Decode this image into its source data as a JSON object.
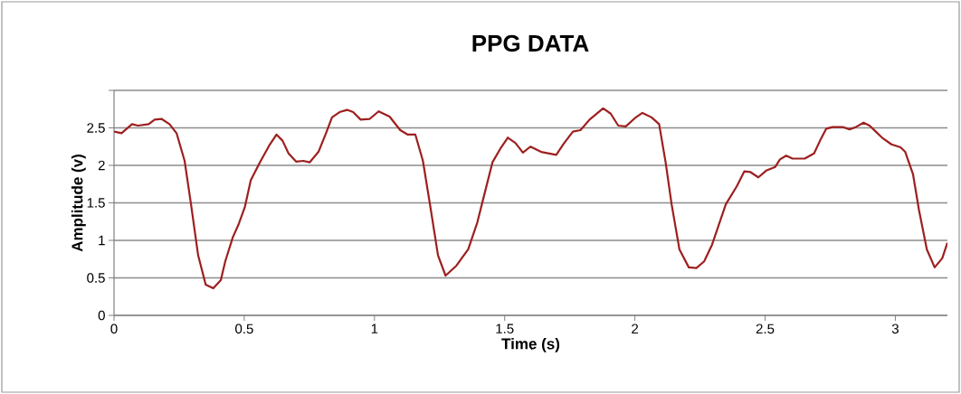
{
  "chart_data": {
    "type": "line",
    "title": "PPG DATA",
    "xlabel": "Time (s)",
    "ylabel": "Amplitude (v)",
    "xlim": [
      0,
      3.2
    ],
    "ylim": [
      0,
      3
    ],
    "xticks": [
      0,
      0.5,
      1,
      1.5,
      2,
      2.5,
      3
    ],
    "yticks": [
      0,
      0.5,
      1,
      1.5,
      2,
      2.5,
      {
        "value": 3,
        "label": null
      }
    ],
    "grid": "y",
    "series": [
      {
        "color": "#9e1f1f",
        "x": [
          0,
          0.029,
          0.069,
          0.092,
          0.133,
          0.156,
          0.182,
          0.213,
          0.24,
          0.271,
          0.294,
          0.323,
          0.352,
          0.381,
          0.41,
          0.427,
          0.456,
          0.479,
          0.502,
          0.525,
          0.56,
          0.595,
          0.624,
          0.647,
          0.67,
          0.699,
          0.727,
          0.751,
          0.785,
          0.814,
          0.837,
          0.866,
          0.895,
          0.918,
          0.947,
          0.982,
          1.016,
          1.058,
          1.099,
          1.128,
          1.157,
          1.186,
          1.215,
          1.244,
          1.273,
          1.314,
          1.36,
          1.395,
          1.424,
          1.453,
          1.483,
          1.512,
          1.541,
          1.57,
          1.599,
          1.64,
          1.698,
          1.727,
          1.762,
          1.791,
          1.826,
          1.878,
          1.907,
          1.936,
          1.965,
          2.0,
          2.029,
          2.064,
          2.093,
          2.118,
          2.141,
          2.171,
          2.207,
          2.236,
          2.266,
          2.296,
          2.349,
          2.391,
          2.42,
          2.444,
          2.474,
          2.504,
          2.539,
          2.557,
          2.581,
          2.605,
          2.652,
          2.688,
          2.711,
          2.735,
          2.759,
          2.8,
          2.824,
          2.848,
          2.878,
          2.901,
          2.925,
          2.949,
          2.985,
          3.02,
          3.038,
          3.068,
          3.091,
          3.121,
          3.151,
          3.18,
          3.2
        ],
        "values": [
          2.45,
          2.43,
          2.55,
          2.53,
          2.55,
          2.61,
          2.62,
          2.55,
          2.43,
          2.06,
          1.52,
          0.8,
          0.41,
          0.36,
          0.47,
          0.72,
          1.04,
          1.22,
          1.44,
          1.8,
          2.04,
          2.26,
          2.41,
          2.33,
          2.16,
          2.05,
          2.06,
          2.04,
          2.18,
          2.43,
          2.64,
          2.71,
          2.74,
          2.71,
          2.61,
          2.62,
          2.72,
          2.65,
          2.47,
          2.41,
          2.41,
          2.06,
          1.44,
          0.8,
          0.53,
          0.66,
          0.88,
          1.24,
          1.64,
          2.04,
          2.22,
          2.37,
          2.3,
          2.17,
          2.25,
          2.18,
          2.14,
          2.29,
          2.45,
          2.47,
          2.61,
          2.76,
          2.69,
          2.53,
          2.52,
          2.63,
          2.7,
          2.64,
          2.55,
          2.04,
          1.48,
          0.88,
          0.64,
          0.63,
          0.72,
          0.94,
          1.48,
          1.72,
          1.92,
          1.91,
          1.84,
          1.93,
          1.98,
          2.08,
          2.13,
          2.09,
          2.09,
          2.16,
          2.33,
          2.49,
          2.51,
          2.51,
          2.48,
          2.51,
          2.57,
          2.53,
          2.45,
          2.37,
          2.28,
          2.24,
          2.18,
          1.88,
          1.4,
          0.88,
          0.64,
          0.76,
          0.97
        ]
      }
    ]
  }
}
